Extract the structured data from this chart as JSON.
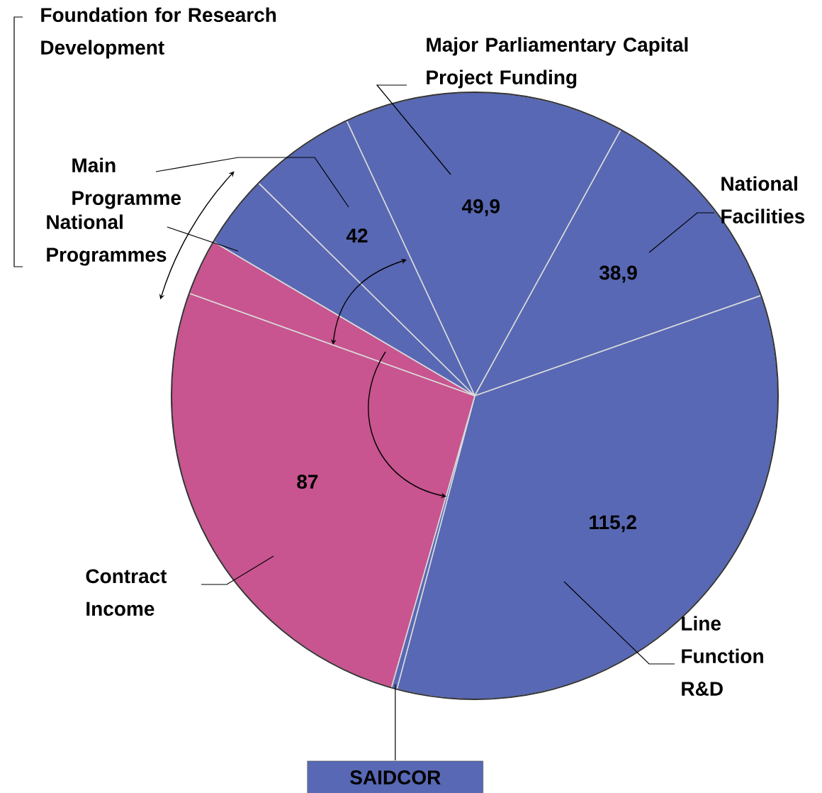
{
  "chart_data": {
    "type": "pie",
    "categories": [
      "Major Parliamentary Capital Project Funding",
      "National Facilities",
      "Line Function R&D",
      "SAIDCOR",
      "Contract Income",
      null,
      "National Programmes",
      "Main Programme"
    ],
    "values": [
      49.9,
      38.9,
      115.2,
      1,
      87,
      10,
      13,
      19
    ],
    "value_labels": [
      "49,9",
      "38,9",
      "115,2",
      null,
      "87",
      null,
      null,
      null
    ],
    "colors": [
      "#5868b4",
      "#5868b4",
      "#5868b4",
      "#5868b4",
      "#c8558f",
      "#c8558f",
      "#5868b4",
      "#5868b4"
    ],
    "annotations": [
      "Foundation for Research Development",
      "42"
    ]
  }
}
